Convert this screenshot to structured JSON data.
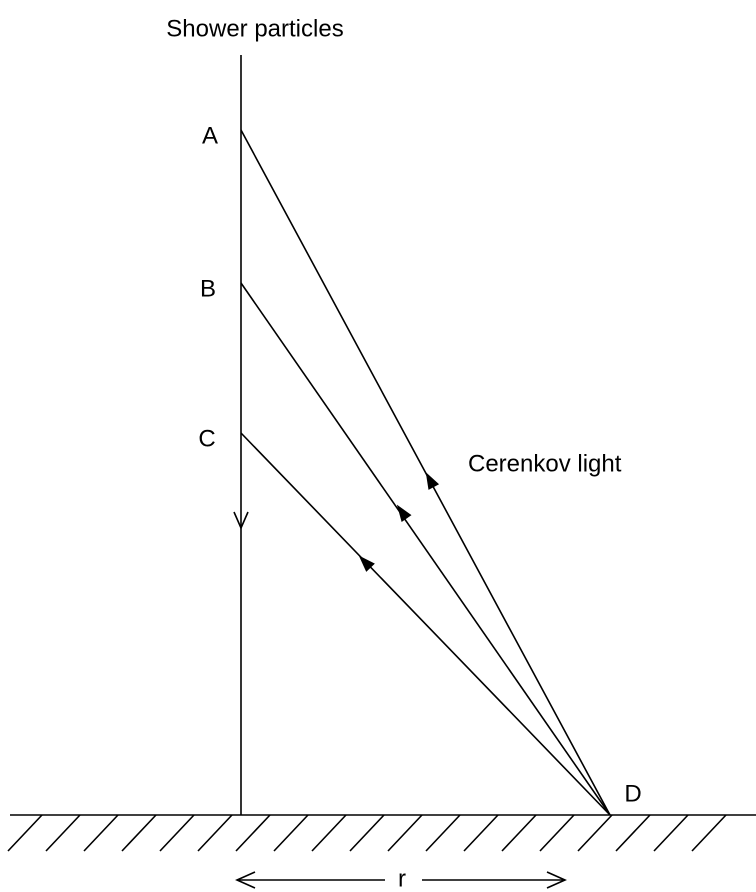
{
  "title": "Shower particles",
  "points": [
    {
      "label": "A"
    },
    {
      "label": "B"
    },
    {
      "label": "C"
    },
    {
      "label": "D"
    }
  ],
  "light_label": "Cerenkov light",
  "distance_label": "r"
}
